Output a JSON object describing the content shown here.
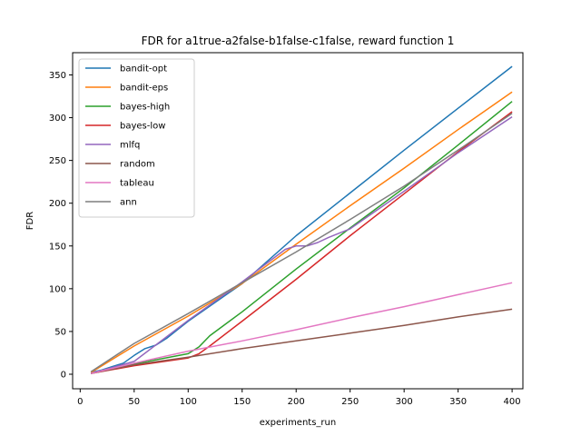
{
  "chart_data": {
    "type": "line",
    "title": "FDR for a1true-a2false-b1false-c1false, reward function 1",
    "xlabel": "experiments_run",
    "ylabel": "FDR",
    "xlim": [
      -7,
      410
    ],
    "ylim": [
      -17,
      376
    ],
    "xticks": [
      0,
      50,
      100,
      150,
      200,
      250,
      300,
      350,
      400
    ],
    "yticks": [
      0,
      50,
      100,
      150,
      200,
      250,
      300,
      350
    ],
    "grid": false,
    "legend_position": "top-left",
    "series": [
      {
        "name": "bandit-opt",
        "color": "#1f77b4",
        "x": [
          10,
          20,
          30,
          40,
          50,
          60,
          70,
          80,
          90,
          100,
          150,
          200,
          250,
          300,
          350,
          400
        ],
        "y": [
          2,
          5,
          9,
          13,
          22,
          30,
          34,
          42,
          52,
          62,
          106,
          162,
          212,
          262,
          311,
          360
        ]
      },
      {
        "name": "bandit-eps",
        "color": "#ff7f0e",
        "x": [
          10,
          50,
          100,
          150,
          200,
          250,
          300,
          350,
          400
        ],
        "y": [
          2,
          33,
          68,
          106,
          152,
          197,
          241,
          286,
          330
        ]
      },
      {
        "name": "bayes-high",
        "color": "#2ca02c",
        "x": [
          10,
          50,
          100,
          110,
          120,
          150,
          200,
          250,
          300,
          350,
          400
        ],
        "y": [
          1,
          12,
          24,
          32,
          45,
          73,
          123,
          171,
          218,
          268,
          319
        ]
      },
      {
        "name": "bayes-low",
        "color": "#d62728",
        "x": [
          10,
          50,
          100,
          110,
          120,
          150,
          200,
          250,
          300,
          350,
          400
        ],
        "y": [
          1,
          10,
          19,
          24,
          33,
          62,
          111,
          162,
          211,
          260,
          307
        ]
      },
      {
        "name": "mlfq",
        "color": "#9467bd",
        "x": [
          10,
          50,
          100,
          150,
          190,
          200,
          210,
          220,
          230,
          250,
          300,
          350,
          400
        ],
        "y": [
          1,
          15,
          63,
          108,
          146,
          150,
          150,
          154,
          160,
          170,
          214,
          259,
          301
        ]
      },
      {
        "name": "random",
        "color": "#8c564b",
        "x": [
          10,
          50,
          100,
          150,
          200,
          250,
          300,
          350,
          400
        ],
        "y": [
          1,
          11,
          20,
          30,
          39,
          48,
          57,
          67,
          76
        ]
      },
      {
        "name": "tableau",
        "color": "#e377c2",
        "x": [
          10,
          50,
          100,
          150,
          200,
          250,
          300,
          350,
          400
        ],
        "y": [
          1,
          13,
          27,
          39,
          52,
          66,
          79,
          93,
          107
        ]
      },
      {
        "name": "ann",
        "color": "#7f7f7f",
        "x": [
          10,
          50,
          100,
          150,
          200,
          250,
          300,
          350,
          400
        ],
        "y": [
          3,
          36,
          71,
          107,
          143,
          181,
          220,
          262,
          305
        ]
      }
    ]
  }
}
